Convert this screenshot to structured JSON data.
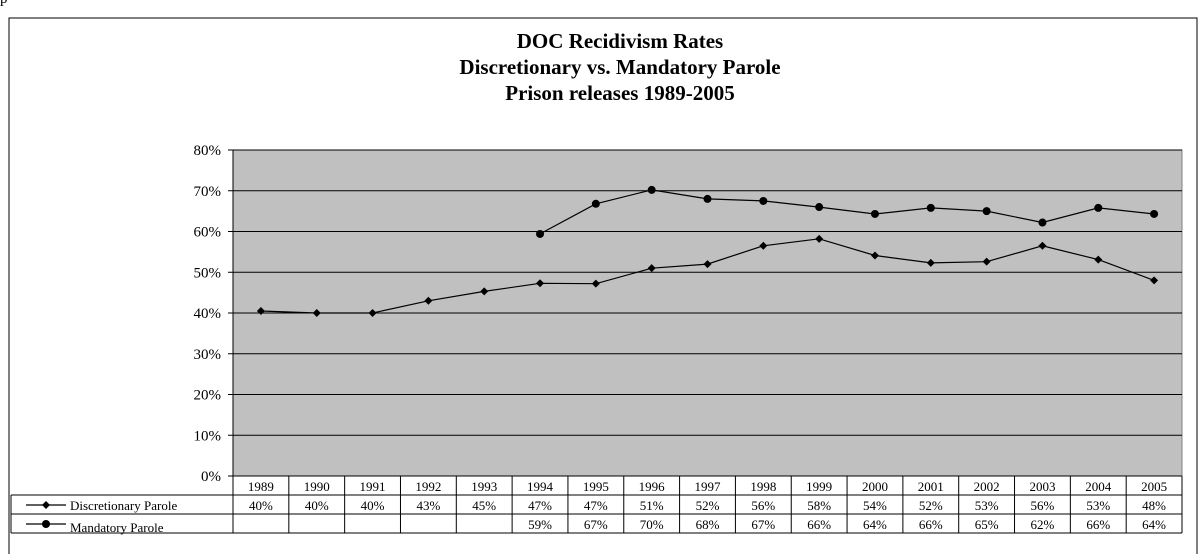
{
  "page": {
    "caption_fragment": "p"
  },
  "chart_data": {
    "type": "line",
    "title": [
      "DOC Recidivism Rates",
      "Discretionary vs. Mandatory Parole",
      "Prison releases 1989-2005"
    ],
    "x": [
      "1989",
      "1990",
      "1991",
      "1992",
      "1993",
      "1994",
      "1995",
      "1996",
      "1997",
      "1998",
      "1999",
      "2000",
      "2001",
      "2002",
      "2003",
      "2004",
      "2005"
    ],
    "y_ticks": [
      "0%",
      "10%",
      "20%",
      "30%",
      "40%",
      "50%",
      "60%",
      "70%",
      "80%"
    ],
    "ylim": [
      0,
      80
    ],
    "grid": true,
    "plot_background": "#c0c0c0",
    "series": [
      {
        "name": "Discretionary Parole",
        "marker": "diamond",
        "values": [
          40.5,
          40,
          40,
          43,
          45.3,
          47.3,
          47.2,
          51,
          52,
          56.5,
          58.2,
          54.1,
          52.3,
          52.6,
          56.5,
          53.1,
          48
        ],
        "labels": [
          "40%",
          "40%",
          "40%",
          "43%",
          "45%",
          "47%",
          "47%",
          "51%",
          "52%",
          "56%",
          "58%",
          "54%",
          "52%",
          "53%",
          "56%",
          "53%",
          "48%"
        ]
      },
      {
        "name": "Mandatory Parole",
        "marker": "circle",
        "values": [
          null,
          null,
          null,
          null,
          null,
          59.4,
          66.8,
          70.2,
          68,
          67.5,
          66,
          64.3,
          65.8,
          65,
          62.2,
          65.8,
          64.3
        ],
        "labels": [
          "",
          "",
          "",
          "",
          "",
          "59%",
          "67%",
          "70%",
          "68%",
          "67%",
          "66%",
          "64%",
          "66%",
          "65%",
          "62%",
          "66%",
          "64%"
        ]
      }
    ]
  }
}
